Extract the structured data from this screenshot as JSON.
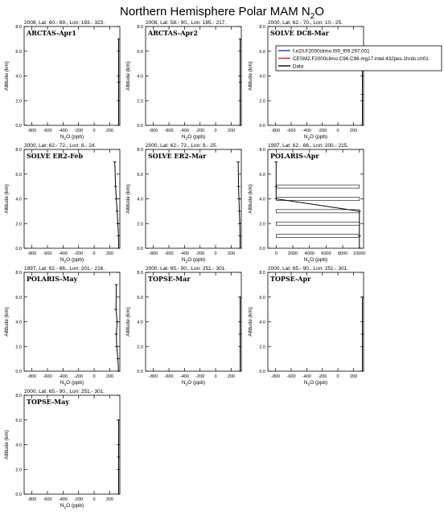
{
  "title": "Northern Hemisphere Polar MAM N",
  "title_sub": "2",
  "title_tail": "O",
  "legend": [
    {
      "name": "f.e20.F2000climo.f09_f09.297.001",
      "color": "#1f3fbf"
    },
    {
      "name": "CESM2.F2000climo.C96.C96.mg17.intel.432pes.1hrds.ch01",
      "color": "#d62020"
    },
    {
      "name": "Data",
      "color": "#000000"
    }
  ],
  "chart_data": [
    {
      "type": "line",
      "panel": "ARCTAS-Apr1",
      "header": "2008, Lat: 60.- 89., Lon: 193.- 323.",
      "xlabel": "N2O (ppb)",
      "ylabel": "Altitude (km)",
      "xlim": [
        -900,
        330
      ],
      "ylim": [
        0,
        8
      ],
      "xticks": [
        -800,
        -600,
        -400,
        -200,
        0,
        200
      ],
      "yticks": [
        0,
        2,
        4,
        6,
        8
      ],
      "series": [
        {
          "name": "Data",
          "x": [
            315,
            315,
            315
          ],
          "y": [
            0,
            3.5,
            7.0
          ]
        }
      ]
    },
    {
      "type": "line",
      "panel": "ARCTAS-Apr2",
      "header": "2008, Lat: 58.- 90., Lon: 185.- 217.",
      "xlabel": "N2O (ppb)",
      "ylabel": "Altitude (km)",
      "xlim": [
        -900,
        330
      ],
      "ylim": [
        0,
        8
      ],
      "xticks": [
        -800,
        -600,
        -400,
        -200,
        0,
        200
      ],
      "yticks": [
        0,
        2,
        4,
        6,
        8
      ],
      "series": [
        {
          "name": "Data",
          "x": [
            316,
            316,
            316
          ],
          "y": [
            0,
            3.5,
            7.0
          ]
        }
      ]
    },
    {
      "type": "line",
      "panel": "SOLVE DC8-Mar",
      "header": "2000, Lat: 62.- 70., Lon: 10.- 25.",
      "xlabel": "N2O (ppb)",
      "ylabel": "Altitude (km)",
      "xlim": [
        -900,
        330
      ],
      "ylim": [
        0,
        8
      ],
      "xticks": [
        -800,
        -600,
        -400,
        -200,
        0,
        200
      ],
      "yticks": [
        0,
        2,
        4,
        6,
        8
      ],
      "series": [
        {
          "name": "Data",
          "x": [
            315,
            315,
            315
          ],
          "y": [
            0,
            2.5,
            5.0
          ]
        }
      ]
    },
    {
      "type": "line",
      "panel": "SOLVE ER2-Feb",
      "header": "2000, Lat: 62.- 72., Lon: 8.- 24.",
      "xlabel": "N2O (ppb)",
      "ylabel": "Altitude (km)",
      "xlim": [
        -900,
        330
      ],
      "ylim": [
        0,
        8
      ],
      "xticks": [
        -800,
        -600,
        -400,
        -200,
        0,
        200
      ],
      "yticks": [
        0,
        2,
        4,
        6,
        8
      ],
      "series": [
        {
          "name": "Data",
          "x": [
            315,
            312,
            305,
            295,
            285,
            275,
            265
          ],
          "y": [
            0,
            1,
            2,
            3,
            4,
            5,
            7
          ]
        }
      ]
    },
    {
      "type": "line",
      "panel": "SOLVE ER2-Mar",
      "header": "2000, Lat: 62.- 72., Lon: 9.- 25.",
      "xlabel": "N2O (ppb)",
      "ylabel": "Altitude (km)",
      "xlim": [
        -900,
        330
      ],
      "ylim": [
        0,
        8
      ],
      "xticks": [
        -800,
        -600,
        -400,
        -200,
        0,
        200
      ],
      "yticks": [
        0,
        2,
        4,
        6,
        8
      ],
      "series": [
        {
          "name": "Data",
          "x": [
            315,
            313,
            310,
            305,
            300,
            295,
            290
          ],
          "y": [
            0,
            1,
            2,
            3,
            4,
            5,
            7
          ]
        }
      ]
    },
    {
      "type": "line",
      "panel": "POLARIS-Apr",
      "header": "1997, Lat: 62.- 66., Lon: 200.- 215.",
      "xlabel": "N2O (ppb)",
      "ylabel": "Altitude (km)",
      "xlim": [
        -1000,
        10500
      ],
      "ylim": [
        0,
        8
      ],
      "xticks": [
        0,
        2000,
        4000,
        6000,
        8000,
        10000
      ],
      "yticks": [
        0,
        2,
        4,
        6,
        8
      ],
      "series": [
        {
          "name": "Data",
          "x": [
            10000,
            10000,
            10000,
            0,
            0,
            0
          ],
          "y": [
            0,
            1,
            3,
            4,
            5,
            7
          ]
        }
      ],
      "error_bars": [
        {
          "y": 1,
          "low": 0,
          "high": 10000
        },
        {
          "y": 2,
          "low": 0,
          "high": 10000
        },
        {
          "y": 3,
          "low": 0,
          "high": 10000
        },
        {
          "y": 4,
          "low": 0,
          "high": 10000
        },
        {
          "y": 5,
          "low": 0,
          "high": 10000
        }
      ]
    },
    {
      "type": "line",
      "panel": "POLARIS-May",
      "header": "1997, Lat: 62.- 66., Lon: 201.- 216.",
      "xlabel": "N2O (ppb)",
      "ylabel": "Altitude (km)",
      "xlim": [
        -900,
        330
      ],
      "ylim": [
        0,
        8
      ],
      "xticks": [
        -800,
        -600,
        -400,
        -200,
        0,
        200
      ],
      "yticks": [
        0,
        2,
        4,
        6,
        8
      ],
      "series": [
        {
          "name": "Data",
          "x": [
            312,
            305,
            290,
            285,
            295,
            280,
            285
          ],
          "y": [
            0,
            1,
            2,
            3,
            4,
            5,
            7
          ]
        }
      ]
    },
    {
      "type": "line",
      "panel": "TOPSE-Mar",
      "header": "2000, Lat: 65.- 90., Lon: 251.- 301.",
      "xlabel": "N2O (ppb)",
      "ylabel": "Altitude (km)",
      "xlim": [
        -900,
        330
      ],
      "ylim": [
        0,
        8
      ],
      "xticks": [
        -800,
        -600,
        -400,
        -200,
        0,
        200
      ],
      "yticks": [
        0,
        2,
        4,
        6,
        8
      ],
      "series": [
        {
          "name": "Data",
          "x": [
            316,
            316,
            316
          ],
          "y": [
            0,
            3,
            6
          ]
        }
      ]
    },
    {
      "type": "line",
      "panel": "TOPSE-Apr",
      "header": "2000, Lat: 65.- 90., Lon: 251.- 301.",
      "xlabel": "N2O (ppb)",
      "ylabel": "Altitude (km)",
      "xlim": [
        -900,
        330
      ],
      "ylim": [
        0,
        8
      ],
      "xticks": [
        -800,
        -600,
        -400,
        -200,
        0,
        200
      ],
      "yticks": [
        0,
        2,
        4,
        6,
        8
      ],
      "series": [
        {
          "name": "Data",
          "x": [
            316,
            316,
            316
          ],
          "y": [
            0,
            3,
            6
          ]
        }
      ]
    },
    {
      "type": "line",
      "panel": "TOPSE-May",
      "header": "2000, Lat: 65.- 90., Lon: 251.- 301.",
      "xlabel": "N2O (ppb)",
      "ylabel": "Altitude (km)",
      "xlim": [
        -900,
        330
      ],
      "ylim": [
        0,
        8
      ],
      "xticks": [
        -800,
        -600,
        -400,
        -200,
        0,
        200
      ],
      "yticks": [
        0,
        2,
        4,
        6,
        8
      ],
      "series": [
        {
          "name": "Data",
          "x": [
            314,
            315,
            316
          ],
          "y": [
            0,
            3,
            6
          ]
        }
      ]
    }
  ]
}
